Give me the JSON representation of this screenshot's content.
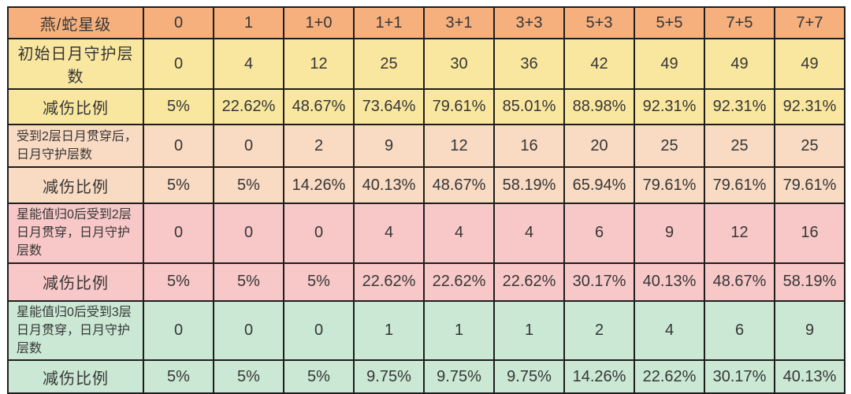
{
  "colors": {
    "header_orange": "#F5B07E",
    "yellow": "#FAE79F",
    "peach": "#F9DAC2",
    "pink": "#F8C8C8",
    "green": "#CAE8D3",
    "border": "#1e1e1e",
    "text": "#363636"
  },
  "table": {
    "rows": [
      {
        "label": "燕/蛇星级",
        "bg": "#F5B07E",
        "header": true,
        "values": [
          "0",
          "1",
          "1+0",
          "1+1",
          "3+1",
          "3+3",
          "5+3",
          "5+5",
          "7+5",
          "7+7"
        ]
      },
      {
        "label": "初始日月守护层数",
        "bg": "#FAE79F",
        "values": [
          "0",
          "4",
          "12",
          "25",
          "30",
          "36",
          "42",
          "49",
          "49",
          "49"
        ]
      },
      {
        "label": "减伤比例",
        "bg": "#FAE79F",
        "values": [
          "5%",
          "22.62%",
          "48.67%",
          "73.64%",
          "79.61%",
          "85.01%",
          "88.98%",
          "92.31%",
          "92.31%",
          "92.31%"
        ]
      },
      {
        "label": "受到2层日月贯穿后，日月守护层数",
        "bg": "#F9DAC2",
        "small": true,
        "values": [
          "0",
          "0",
          "2",
          "9",
          "12",
          "16",
          "20",
          "25",
          "25",
          "25"
        ]
      },
      {
        "label": "减伤比例",
        "bg": "#F9DAC2",
        "values": [
          "5%",
          "5%",
          "14.26%",
          "40.13%",
          "48.67%",
          "58.19%",
          "65.94%",
          "79.61%",
          "79.61%",
          "79.61%"
        ]
      },
      {
        "label": "星能值归0后受到2层日月贯穿，日月守护层数",
        "bg": "#F8C8C8",
        "small": true,
        "values": [
          "0",
          "0",
          "0",
          "4",
          "4",
          "4",
          "6",
          "9",
          "12",
          "16"
        ]
      },
      {
        "label": "减伤比例",
        "bg": "#F8C8C8",
        "values": [
          "5%",
          "5%",
          "5%",
          "22.62%",
          "22.62%",
          "22.62%",
          "30.17%",
          "40.13%",
          "48.67%",
          "58.19%"
        ]
      },
      {
        "label": "星能值归0后受到3层日月贯穿，日月守护层数",
        "bg": "#CAE8D3",
        "small": true,
        "values": [
          "0",
          "0",
          "0",
          "1",
          "1",
          "1",
          "2",
          "4",
          "6",
          "9"
        ]
      },
      {
        "label": "减伤比例",
        "bg": "#CAE8D3",
        "values": [
          "5%",
          "5%",
          "5%",
          "9.75%",
          "9.75%",
          "9.75%",
          "14.26%",
          "22.62%",
          "30.17%",
          "40.13%"
        ]
      }
    ]
  },
  "chart_data": {
    "type": "table",
    "title": "燕/蛇星级 日月守护减伤表",
    "columns": [
      "燕/蛇星级",
      "0",
      "1",
      "1+0",
      "1+1",
      "3+1",
      "3+3",
      "5+3",
      "5+5",
      "7+5",
      "7+7"
    ],
    "rows": [
      {
        "label": "初始日月守护层数",
        "values": [
          0,
          4,
          12,
          25,
          30,
          36,
          42,
          49,
          49,
          49
        ]
      },
      {
        "label": "减伤比例",
        "values": [
          "5%",
          "22.62%",
          "48.67%",
          "73.64%",
          "79.61%",
          "85.01%",
          "88.98%",
          "92.31%",
          "92.31%",
          "92.31%"
        ]
      },
      {
        "label": "受到2层日月贯穿后，日月守护层数",
        "values": [
          0,
          0,
          2,
          9,
          12,
          16,
          20,
          25,
          25,
          25
        ]
      },
      {
        "label": "减伤比例",
        "values": [
          "5%",
          "5%",
          "14.26%",
          "40.13%",
          "48.67%",
          "58.19%",
          "65.94%",
          "79.61%",
          "79.61%",
          "79.61%"
        ]
      },
      {
        "label": "星能值归0后受到2层日月贯穿，日月守护层数",
        "values": [
          0,
          0,
          0,
          4,
          4,
          4,
          6,
          9,
          12,
          16
        ]
      },
      {
        "label": "减伤比例",
        "values": [
          "5%",
          "5%",
          "5%",
          "22.62%",
          "22.62%",
          "22.62%",
          "30.17%",
          "40.13%",
          "48.67%",
          "58.19%"
        ]
      },
      {
        "label": "星能值归0后受到3层日月贯穿，日月守护层数",
        "values": [
          0,
          0,
          0,
          1,
          1,
          1,
          2,
          4,
          6,
          9
        ]
      },
      {
        "label": "减伤比例",
        "values": [
          "5%",
          "5%",
          "5%",
          "9.75%",
          "9.75%",
          "9.75%",
          "14.26%",
          "22.62%",
          "30.17%",
          "40.13%"
        ]
      }
    ]
  }
}
